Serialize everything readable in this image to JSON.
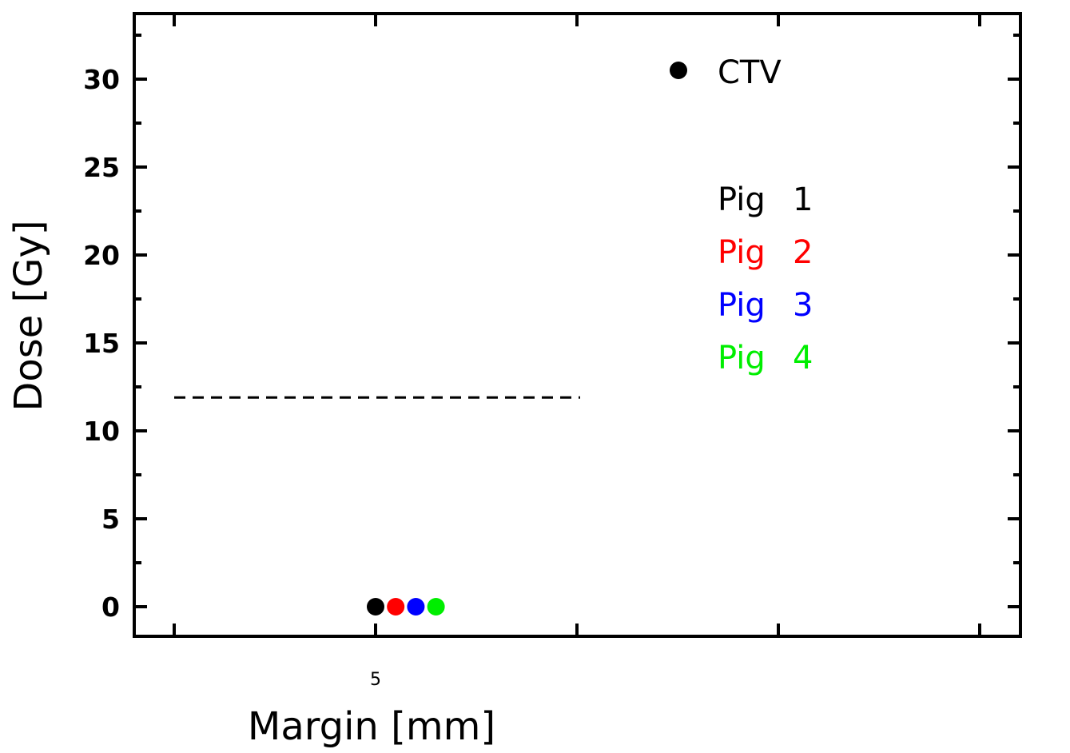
{
  "chart_data": {
    "type": "scatter",
    "title": "",
    "xlabel": "Margin [mm]",
    "ylabel": "Dose [Gy]",
    "xlim": [
      0,
      10
    ],
    "ylim": [
      -1.6,
      33.2
    ],
    "yticks": [
      "0",
      "5",
      "10",
      "15",
      "20",
      "25",
      "30"
    ],
    "ytick_values": [
      0,
      5,
      10,
      15,
      20,
      25,
      30
    ],
    "xtick_labels": [
      {
        "value": 5,
        "label": "5"
      }
    ],
    "reference_line": {
      "y": 11.9,
      "x": [
        0,
        6.0
      ],
      "style": "dashed",
      "color": "#000000"
    },
    "series": [
      {
        "name": "Pig 1",
        "color": "#000000",
        "x": [
          5.0
        ],
        "y": [
          0
        ]
      },
      {
        "name": "Pig 2",
        "color": "#ff0000",
        "x": [
          5.5
        ],
        "y": [
          0
        ]
      },
      {
        "name": "Pig 3",
        "color": "#0000ff",
        "x": [
          6.0
        ],
        "y": [
          0
        ]
      },
      {
        "name": "Pig 4",
        "color": "#00ee00",
        "x": [
          6.5
        ],
        "y": [
          0
        ]
      }
    ],
    "legend": {
      "placement": "top-right",
      "marker_label": "CTV",
      "entries": [
        {
          "label": "Pig 1",
          "number": "1",
          "color": "#000000"
        },
        {
          "label": "Pig 2",
          "number": "2",
          "color": "#ff0000"
        },
        {
          "label": "Pig 3",
          "number": "3",
          "color": "#0000ff"
        },
        {
          "label": "Pig 4",
          "number": "4",
          "color": "#00ee00"
        }
      ]
    },
    "grid": false
  }
}
